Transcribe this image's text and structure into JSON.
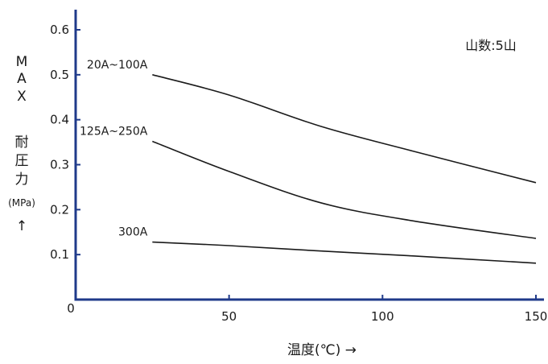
{
  "chart_data": {
    "type": "line",
    "x_axis": {
      "label": "温度(℃) →",
      "range": [
        0,
        150
      ],
      "ticks": [
        50,
        100,
        150
      ],
      "tick_labels": [
        "50",
        "100",
        "150"
      ]
    },
    "y_axis": {
      "label_lines": [
        "M",
        "A",
        "X",
        "耐",
        "圧",
        "力",
        "(MPa)",
        "↑"
      ],
      "range": [
        0,
        0.65
      ],
      "ticks": [
        0.1,
        0.2,
        0.3,
        0.4,
        0.5,
        0.6
      ],
      "tick_labels": [
        "0.1",
        "0.2",
        "0.3",
        "0.4",
        "0.5",
        "0.6"
      ]
    },
    "origin_label": "0",
    "grid": false,
    "annotation": "山数:5山",
    "series": [
      {
        "name": "20A~100A",
        "color": "#1a1a1a",
        "points": [
          [
            25,
            0.5
          ],
          [
            50,
            0.455
          ],
          [
            80,
            0.385
          ],
          [
            110,
            0.33
          ],
          [
            150,
            0.26
          ]
        ]
      },
      {
        "name": "125A~250A",
        "color": "#1a1a1a",
        "points": [
          [
            25,
            0.352
          ],
          [
            50,
            0.285
          ],
          [
            80,
            0.215
          ],
          [
            110,
            0.175
          ],
          [
            150,
            0.136
          ]
        ]
      },
      {
        "name": "300A",
        "color": "#1a1a1a",
        "points": [
          [
            25,
            0.128
          ],
          [
            50,
            0.12
          ],
          [
            80,
            0.108
          ],
          [
            110,
            0.097
          ],
          [
            150,
            0.081
          ]
        ]
      }
    ],
    "axis_color": "#1f3a8a"
  }
}
